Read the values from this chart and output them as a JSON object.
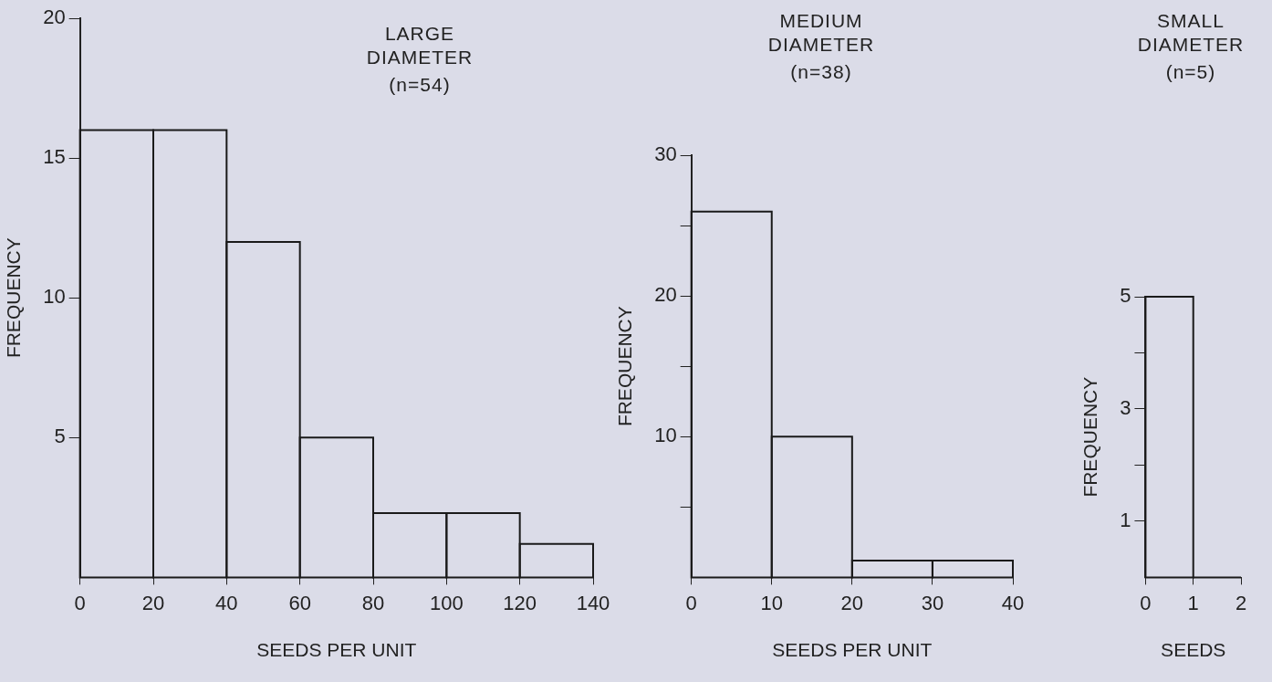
{
  "chart_data": [
    {
      "type": "histogram",
      "title": "LARGE DIAMETER",
      "subtitle": "(n=54)",
      "xlabel": "SEEDS PER UNIT",
      "ylabel": "FREQUENCY",
      "bins": [
        0,
        20,
        40,
        60,
        80,
        100,
        120,
        140
      ],
      "values": [
        16,
        16,
        12,
        5,
        2.3,
        2.3,
        1.2
      ],
      "color": "#1a1a1a",
      "xlim": [
        0,
        140
      ],
      "xticks": [
        0,
        20,
        40,
        60,
        80,
        100,
        120,
        140
      ],
      "ylim": [
        0,
        20
      ],
      "yticks": [
        5,
        10,
        15,
        20
      ]
    },
    {
      "type": "histogram",
      "title": "MEDIUM DIAMETER",
      "subtitle": "(n=38)",
      "xlabel": "SEEDS PER UNIT",
      "ylabel": "FREQUENCY",
      "bins": [
        0,
        10,
        20,
        30,
        40
      ],
      "values": [
        26,
        10,
        1.2,
        1.2
      ],
      "color": "#1a1a1a",
      "xlim": [
        0,
        40
      ],
      "xticks": [
        0,
        10,
        20,
        30,
        40
      ],
      "ylim": [
        0,
        30
      ],
      "yticks": [
        {
          "value": 5,
          "label": null
        },
        10,
        {
          "value": 15,
          "label": null
        },
        20,
        {
          "value": 25,
          "label": null
        },
        30
      ]
    },
    {
      "type": "histogram",
      "title": "SMALL DIAMETER",
      "subtitle": "(n=5)",
      "xlabel": "SEEDS",
      "ylabel": "FREQUENCY",
      "bins": [
        0,
        1,
        2
      ],
      "values": [
        5,
        0
      ],
      "color": "#1a1a1a",
      "xlim": [
        0,
        2
      ],
      "xticks": [
        0,
        1,
        2
      ],
      "ylim": [
        0,
        5
      ],
      "yticks": [
        1,
        {
          "value": 2,
          "label": null
        },
        3,
        {
          "value": 4,
          "label": null
        },
        5
      ]
    }
  ]
}
